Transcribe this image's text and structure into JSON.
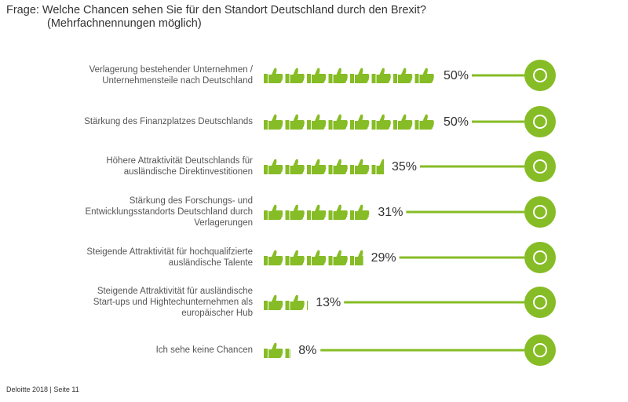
{
  "chart_data": {
    "type": "pictogram",
    "title": "Frage: Welche Chancen sehen Sie für den Standort Deutschland durch den Brexit?",
    "subtitle": "(Mehrfachnennungen möglich)",
    "categories": [
      "Verlagerung bestehender Unternehmen /\nUnternehmensteile nach Deutschland",
      "Stärkung des Finanzplatzes Deutschlands",
      "Höhere Attraktivität Deutschlands für\nausländische Direktinvestitionen",
      "Stärkung des Forschungs- und\nEntwicklungsstandorts Deutschland durch\nVerlagerungen",
      "Steigende Attraktivität für hochqualifzierte\nausländische Talente",
      "Steigende Attraktivität für ausländische\nStart-ups und Hightechunternehmen als\neuropäischer Hub",
      "Ich sehe keine Chancen"
    ],
    "values": [
      50,
      50,
      35,
      31,
      29,
      13,
      8
    ],
    "value_labels": [
      "50%",
      "50%",
      "35%",
      "31%",
      "29%",
      "13%",
      "8%"
    ],
    "color": "#86bc25",
    "source": "Deloitte 2018 | Seite 11"
  }
}
